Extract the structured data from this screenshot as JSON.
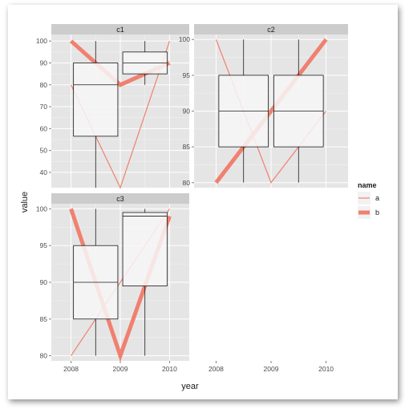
{
  "chart_data": {
    "type": "boxplot-line-facet",
    "xlabel": "year",
    "ylabel": "value",
    "x_ticks": [
      "2008",
      "2009",
      "2010"
    ],
    "legend": {
      "title": "name",
      "placement": "right",
      "entries": [
        {
          "label": "a",
          "width": "thin"
        },
        {
          "label": "b",
          "width": "thick"
        }
      ]
    },
    "colors": {
      "line": "#f08070",
      "panel_bg": "#e5e5e5",
      "strip_bg": "#cccccc",
      "box_fill": "#f7f7f7"
    },
    "panels": [
      {
        "strip": "c1",
        "ylim": [
          33,
          103
        ],
        "y_ticks": [
          40,
          50,
          60,
          70,
          80,
          90,
          100
        ],
        "series": [
          {
            "name": "a",
            "x": [
              2008,
              2009,
              2010
            ],
            "y": [
              80,
              33,
              100
            ]
          },
          {
            "name": "b",
            "x": [
              2008,
              2009,
              2010
            ],
            "y": [
              100,
              80,
              90
            ]
          }
        ],
        "boxes": [
          {
            "x": 2008.5,
            "min": 33,
            "q1": 56.5,
            "median": 80,
            "q3": 90,
            "max": 100
          },
          {
            "x": 2009.5,
            "min": 80,
            "q1": 85,
            "median": 90,
            "q3": 95,
            "max": 100
          }
        ]
      },
      {
        "strip": "c2",
        "ylim": [
          79.3,
          100.7
        ],
        "y_ticks": [
          80,
          85,
          90,
          95,
          100
        ],
        "series": [
          {
            "name": "a",
            "x": [
              2008,
              2009,
              2010
            ],
            "y": [
              100,
              80,
              90
            ]
          },
          {
            "name": "b",
            "x": [
              2008,
              2009,
              2010
            ],
            "y": [
              80,
              90,
              100
            ]
          }
        ],
        "boxes": [
          {
            "x": 2008.5,
            "min": 80,
            "q1": 85,
            "median": 90,
            "q3": 95,
            "max": 100
          },
          {
            "x": 2009.5,
            "min": 80,
            "q1": 85,
            "median": 90,
            "q3": 95,
            "max": 100
          }
        ]
      },
      {
        "strip": "c3",
        "ylim": [
          79.3,
          100.7
        ],
        "y_ticks": [
          80,
          85,
          90,
          95,
          100
        ],
        "series": [
          {
            "name": "a",
            "x": [
              2008,
              2009,
              2010
            ],
            "y": [
              80,
              90,
              100
            ]
          },
          {
            "name": "b",
            "x": [
              2008,
              2009,
              2010
            ],
            "y": [
              100,
              80,
              99
            ]
          }
        ],
        "boxes": [
          {
            "x": 2008.5,
            "min": 80,
            "q1": 85,
            "median": 90,
            "q3": 95,
            "max": 100
          },
          {
            "x": 2009.5,
            "min": 80,
            "q1": 89.5,
            "median": 99,
            "q3": 99.5,
            "max": 100
          }
        ]
      }
    ]
  }
}
